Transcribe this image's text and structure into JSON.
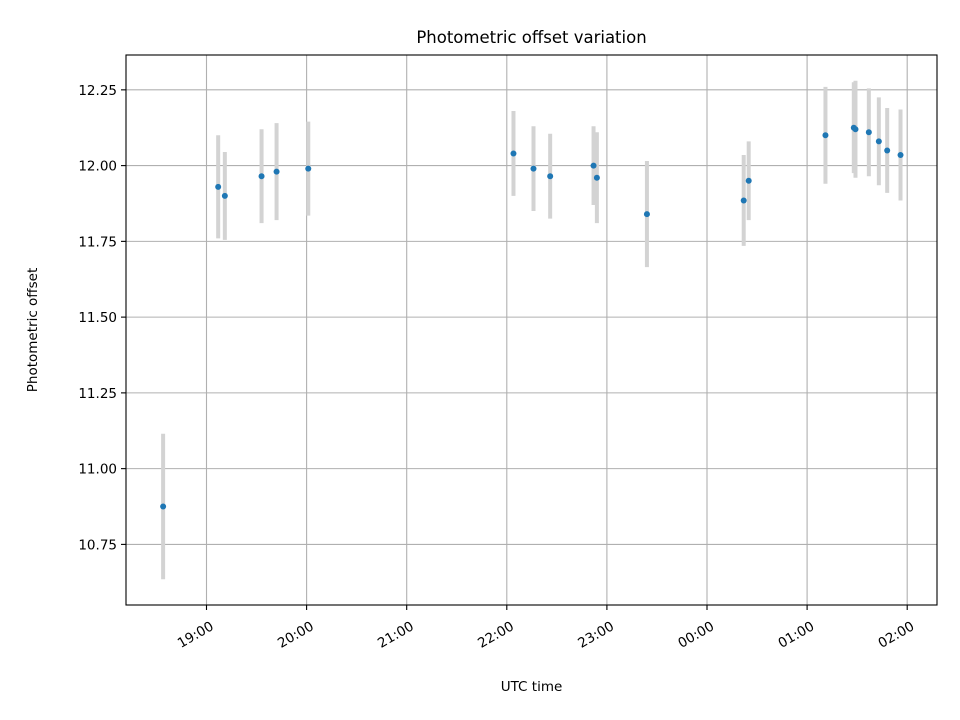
{
  "chart_data": {
    "type": "scatter",
    "title": "Photometric offset variation",
    "xlabel": "UTC time",
    "ylabel": "Photometric offset",
    "x_tick_labels": [
      "19:00",
      "20:00",
      "21:00",
      "22:00",
      "23:00",
      "00:00",
      "01:00",
      "02:00"
    ],
    "y_tick_labels": [
      "10.75",
      "11.00",
      "11.25",
      "11.50",
      "11.75",
      "12.00",
      "12.25"
    ],
    "y_ticks": [
      10.75,
      11.0,
      11.25,
      11.5,
      11.75,
      12.0,
      12.25
    ],
    "ylim": [
      10.55,
      12.365
    ],
    "grid": true,
    "legend": "none",
    "colors": {
      "point": "#1f77b4",
      "errorbar": "#d3d3d3",
      "grid": "#b0b0b0"
    },
    "series": [
      {
        "points": [
          {
            "x": "18:34",
            "y": 10.875,
            "err": 0.24
          },
          {
            "x": "19:07",
            "y": 11.93,
            "err": 0.17
          },
          {
            "x": "19:11",
            "y": 11.9,
            "err": 0.145
          },
          {
            "x": "19:33",
            "y": 11.965,
            "err": 0.155
          },
          {
            "x": "19:42",
            "y": 11.98,
            "err": 0.16
          },
          {
            "x": "20:01",
            "y": 11.99,
            "err": 0.155
          },
          {
            "x": "22:04",
            "y": 12.04,
            "err": 0.14
          },
          {
            "x": "22:16",
            "y": 11.99,
            "err": 0.14
          },
          {
            "x": "22:26",
            "y": 11.965,
            "err": 0.14
          },
          {
            "x": "22:52",
            "y": 12.0,
            "err": 0.13
          },
          {
            "x": "22:54",
            "y": 11.96,
            "err": 0.15
          },
          {
            "x": "23:24",
            "y": 11.84,
            "err": 0.175
          },
          {
            "x": "00:22",
            "y": 11.885,
            "err": 0.15
          },
          {
            "x": "00:25",
            "y": 11.95,
            "err": 0.13
          },
          {
            "x": "01:11",
            "y": 12.1,
            "err": 0.16
          },
          {
            "x": "01:28",
            "y": 12.125,
            "err": 0.15
          },
          {
            "x": "01:29",
            "y": 12.12,
            "err": 0.16
          },
          {
            "x": "01:37",
            "y": 12.11,
            "err": 0.145
          },
          {
            "x": "01:43",
            "y": 12.08,
            "err": 0.145
          },
          {
            "x": "01:48",
            "y": 12.05,
            "err": 0.14
          },
          {
            "x": "01:56",
            "y": 12.035,
            "err": 0.15
          }
        ]
      }
    ]
  }
}
